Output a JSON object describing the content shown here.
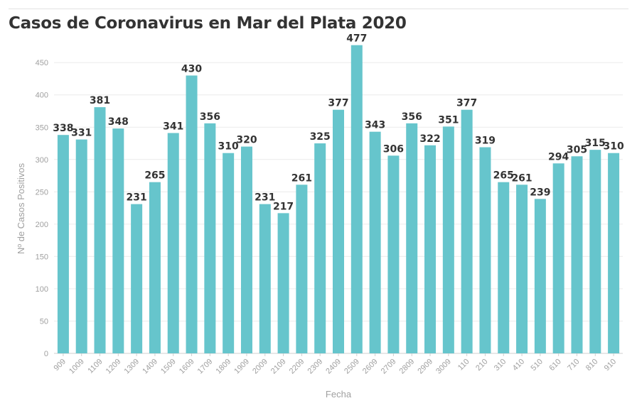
{
  "title": "Casos de Coronavirus en Mar del Plata 2020",
  "chart_data": {
    "type": "bar",
    "title": "Casos de Coronavirus en Mar del Plata 2020",
    "xlabel": "Fecha",
    "ylabel": "Nº de Casos Positivos",
    "categories": [
      "909",
      "1009",
      "1109",
      "1209",
      "1309",
      "1409",
      "1509",
      "1609",
      "1709",
      "1809",
      "1909",
      "2009",
      "2109",
      "2209",
      "2309",
      "2409",
      "2509",
      "2609",
      "2709",
      "2809",
      "2909",
      "3009",
      "110",
      "210",
      "310",
      "410",
      "510",
      "610",
      "710",
      "810",
      "910"
    ],
    "values": [
      338,
      331,
      381,
      348,
      231,
      265,
      341,
      430,
      356,
      310,
      320,
      231,
      217,
      261,
      325,
      377,
      477,
      343,
      306,
      356,
      322,
      351,
      377,
      319,
      265,
      261,
      239,
      294,
      305,
      315,
      310
    ],
    "ylim": [
      0,
      470
    ],
    "yticks": [
      0,
      50,
      100,
      150,
      200,
      250,
      300,
      350,
      400,
      450
    ],
    "grid": true,
    "bar_color": "#66c5cc",
    "label_color": "#333333"
  }
}
